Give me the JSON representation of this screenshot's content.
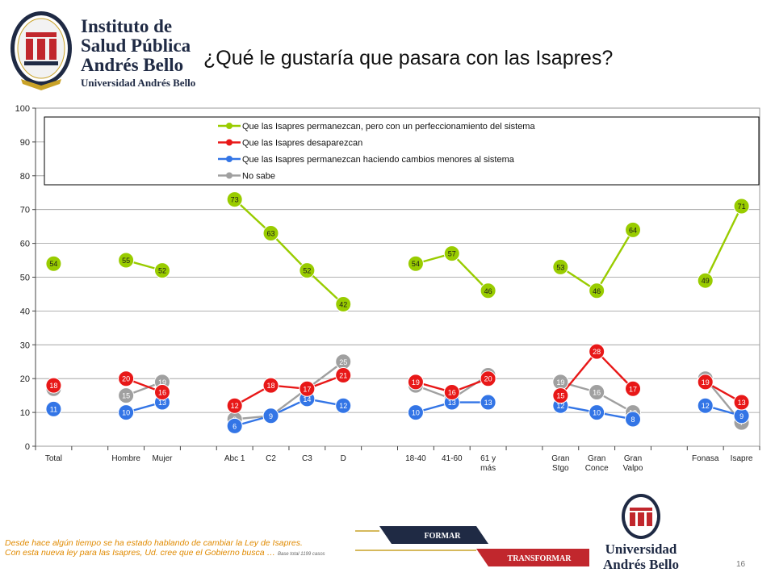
{
  "header": {
    "logo_text": [
      "Instituto de",
      "Salud Pública",
      "Andrés Bello",
      "Universidad Andrés Bello"
    ],
    "title": "¿Qué le gustaría que pasara con las Isapres?"
  },
  "colors": {
    "green": "#99cc00",
    "red": "#e81818",
    "blue": "#3375e6",
    "gray": "#a0a0a0",
    "brand_red": "#c1272d",
    "navy": "#1f2a44"
  },
  "chart_data": {
    "type": "line",
    "categories": [
      "Total",
      "Hombre",
      "Mujer",
      "Abc 1",
      "C2",
      "C3",
      "D",
      "18-40",
      "41-60",
      "61 y más",
      "Gran Stgo",
      "Gran Conce",
      "Gran Valpo",
      "Fonasa",
      "Isapre"
    ],
    "category_labels": [
      [
        "Total"
      ],
      [
        "Hombre"
      ],
      [
        "Mujer"
      ],
      [
        "Abc 1"
      ],
      [
        "C2"
      ],
      [
        "C3"
      ],
      [
        "D"
      ],
      [
        "18-40"
      ],
      [
        "41-60"
      ],
      [
        "61 y",
        "más"
      ],
      [
        "Gran",
        "Stgo"
      ],
      [
        "Gran",
        "Conce"
      ],
      [
        "Gran",
        "Valpo"
      ],
      [
        "Fonasa"
      ],
      [
        "Isapre"
      ]
    ],
    "groups": [
      [
        0
      ],
      [
        1,
        2
      ],
      [
        3,
        4,
        5,
        6
      ],
      [
        7,
        8,
        9
      ],
      [
        10,
        11,
        12
      ],
      [
        13,
        14
      ]
    ],
    "ylim": [
      0,
      100
    ],
    "yticks": [
      0,
      10,
      20,
      30,
      40,
      50,
      60,
      70,
      80,
      90,
      100
    ],
    "series": [
      {
        "name": "Que las Isapres permanezcan, pero con un perfeccionamiento del sistema",
        "color": "#99cc00",
        "values": [
          54,
          55,
          52,
          73,
          63,
          52,
          42,
          54,
          57,
          46,
          53,
          46,
          64,
          49,
          71
        ]
      },
      {
        "name": "Que las Isapres desaparezcan",
        "color": "#e81818",
        "values": [
          18,
          20,
          16,
          12,
          18,
          17,
          21,
          19,
          16,
          20,
          15,
          28,
          17,
          19,
          13
        ]
      },
      {
        "name": "Que las Isapres permanezcan haciendo cambios menores al sistema",
        "color": "#3375e6",
        "values": [
          11,
          10,
          13,
          6,
          9,
          14,
          12,
          10,
          13,
          13,
          12,
          10,
          8,
          12,
          9
        ]
      },
      {
        "name": "No sabe",
        "color": "#a0a0a0",
        "values": [
          17,
          15,
          19,
          8,
          9,
          17,
          25,
          18,
          14,
          21,
          19,
          16,
          10,
          20,
          7
        ]
      }
    ],
    "legend_position": "top-right"
  },
  "footer": {
    "line1": "Desde hace algún tiempo se ha estado hablando de cambiar la Ley de Isapres.",
    "line2": "Con esta nueva ley para las Isapres, Ud. cree que el Gobierno busca …",
    "base": "Base total  1199 casos",
    "banner_top": "FORMAR",
    "banner_bottom": "TRANSFORMAR",
    "logo_text": [
      "Universidad",
      "Andrés Bello"
    ],
    "page_number": "16"
  }
}
